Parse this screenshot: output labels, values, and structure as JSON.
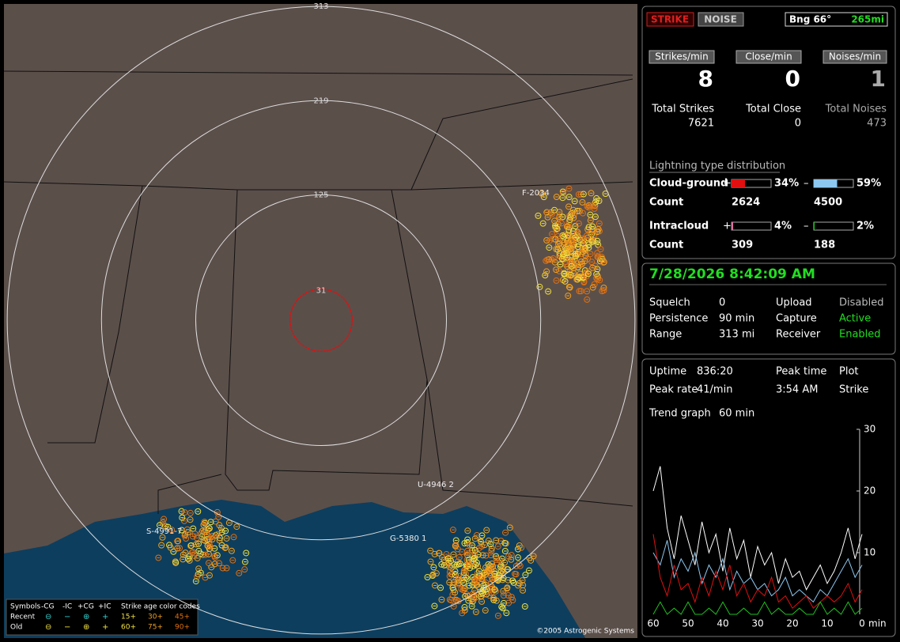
{
  "status": {
    "strike_button": "STRIKE",
    "noise_button": "NOISE",
    "bearing": "Bng 66°",
    "distance": "265mi"
  },
  "counters": {
    "rates": [
      {
        "label": "Strikes/min",
        "value": 8
      },
      {
        "label": "Close/min",
        "value": 0
      },
      {
        "label": "Noises/min",
        "value": 1
      }
    ],
    "totals": [
      {
        "label": "Total Strikes",
        "value": 7621
      },
      {
        "label": "Total Close",
        "value": 0
      },
      {
        "label": "Total Noises",
        "value": 473
      }
    ]
  },
  "distribution": {
    "title": "Lightning type distribution",
    "rows": [
      {
        "label": "Cloud-ground",
        "count_label": "Count",
        "positive": {
          "sign": "+",
          "percent": 34,
          "percent_label": "34%",
          "count": 2624,
          "color": "#e01010"
        },
        "negative": {
          "sign": "–",
          "percent": 59,
          "percent_label": "59%",
          "count": 4500,
          "color": "#8cc8f0"
        }
      },
      {
        "label": "Intracloud",
        "count_label": "Count",
        "positive": {
          "sign": "+",
          "percent": 4,
          "percent_label": "4%",
          "count": 309,
          "color": "#e070a0"
        },
        "negative": {
          "sign": "–",
          "percent": 2,
          "percent_label": "2%",
          "count": 188,
          "color": "#20c020"
        }
      }
    ]
  },
  "clock": "7/28/2026 8:42:09 AM",
  "settings": [
    {
      "label": "Squelch",
      "value": "0",
      "color": "#ffffff"
    },
    {
      "label": "Persistence",
      "value": "90 min",
      "color": "#ffffff"
    },
    {
      "label": "Range",
      "value": "313 mi",
      "color": "#ffffff"
    },
    {
      "label": "Upload",
      "value": "Disabled",
      "color": "#bbbbbb"
    },
    {
      "label": "Capture",
      "value": "Active",
      "color": "#22dd22"
    },
    {
      "label": "Receiver",
      "value": "Enabled",
      "color": "#22dd22"
    }
  ],
  "stats": [
    {
      "label": "Uptime",
      "value": "836:20"
    },
    {
      "label": "Peak rate",
      "value": "41/min"
    },
    {
      "label": "Peak time",
      "value": "3:54 AM"
    },
    {
      "label": "Plot",
      "value": "Strike"
    }
  ],
  "trend": {
    "label": "Trend graph",
    "value": "60 min",
    "x": [
      60,
      58,
      56,
      54,
      52,
      50,
      48,
      46,
      44,
      42,
      40,
      38,
      36,
      34,
      32,
      30,
      28,
      26,
      24,
      22,
      20,
      18,
      16,
      14,
      12,
      10,
      8,
      6,
      4,
      2,
      0
    ],
    "xlim": [
      60,
      0
    ],
    "xticks": [
      60,
      50,
      40,
      30,
      20,
      10,
      0
    ],
    "x_unit": "min",
    "ylim": [
      0,
      30
    ],
    "yticks": [
      10,
      20,
      30
    ],
    "series": [
      {
        "color": "#ffffff",
        "values": [
          20,
          24,
          14,
          9,
          16,
          12,
          8,
          15,
          10,
          13,
          7,
          14,
          9,
          12,
          6,
          11,
          8,
          10,
          5,
          9,
          6,
          7,
          4,
          6,
          8,
          5,
          7,
          10,
          14,
          9,
          13
        ]
      },
      {
        "color": "#8cc8f0",
        "values": [
          10,
          8,
          12,
          6,
          9,
          7,
          10,
          5,
          8,
          6,
          9,
          4,
          7,
          5,
          6,
          4,
          5,
          3,
          4,
          6,
          3,
          4,
          3,
          2,
          4,
          3,
          5,
          7,
          9,
          6,
          8
        ]
      },
      {
        "color": "#e01010",
        "values": [
          13,
          6,
          3,
          8,
          4,
          5,
          2,
          6,
          3,
          7,
          4,
          8,
          3,
          5,
          2,
          4,
          3,
          6,
          2,
          3,
          1,
          2,
          3,
          1,
          2,
          3,
          2,
          3,
          5,
          2,
          4
        ]
      },
      {
        "color": "#20c020",
        "values": [
          0,
          2,
          0,
          1,
          0,
          2,
          0,
          0,
          1,
          0,
          2,
          0,
          0,
          1,
          0,
          0,
          2,
          0,
          1,
          0,
          0,
          1,
          0,
          0,
          2,
          0,
          1,
          0,
          2,
          0,
          1
        ]
      }
    ]
  },
  "map": {
    "range_rings": [
      313,
      219,
      125,
      31
    ],
    "tracks": [
      "F-2034",
      "U-4946 2",
      "S-4991-7",
      "G-5380 1"
    ],
    "copyright": "©2005 Astrogenic Systems",
    "legend": {
      "header": [
        "Symbols",
        "-CG",
        "-IC",
        "+CG",
        "+IC",
        "Strike age color codes"
      ],
      "rows": [
        {
          "label": "Recent",
          "ages": [
            "15+",
            "30+",
            "45+"
          ]
        },
        {
          "label": "Old",
          "ages": [
            "60+",
            "75+",
            "90+"
          ]
        }
      ]
    }
  }
}
